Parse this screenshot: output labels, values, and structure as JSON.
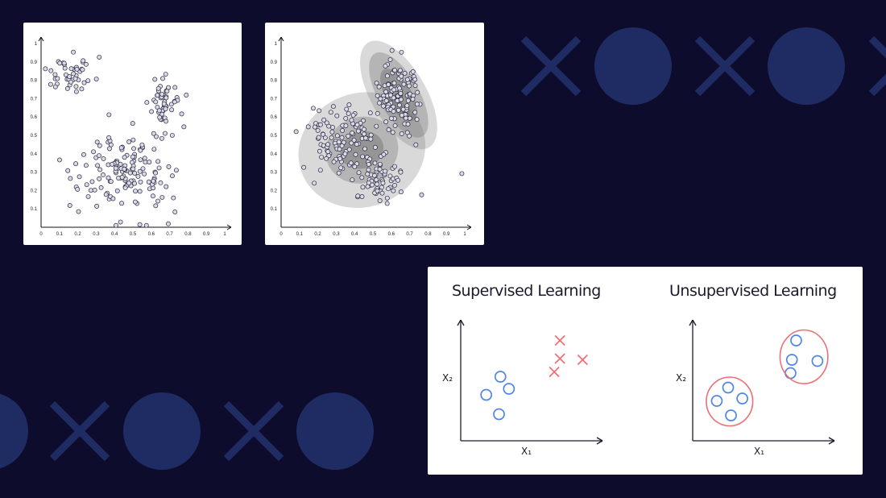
{
  "colors": {
    "background": "#0d0c2c",
    "decoration": "#1f2c63",
    "point_fill": "#d9d9ea",
    "point_stroke": "#2a2a3a",
    "class_a": "#4f86e6",
    "class_b": "#ec6f76"
  },
  "decorations": {
    "top_row": [
      "x-icon",
      "circle-icon",
      "x-icon",
      "circle-icon",
      "x-icon"
    ],
    "bottom_row": [
      "circle-icon",
      "x-icon",
      "circle-icon",
      "x-icon",
      "circle-icon"
    ]
  },
  "chart_data": [
    {
      "type": "scatter",
      "xlim": [
        0,
        1
      ],
      "ylim": [
        0,
        1
      ],
      "xticks": [
        "0",
        "0.1",
        "0.2",
        "0.3",
        "0.4",
        "0.5",
        "0.6",
        "0.7",
        "0.8",
        "0.9",
        "1"
      ],
      "yticks": [
        "0",
        "0.1",
        "0.2",
        "0.3",
        "0.4",
        "0.5",
        "0.6",
        "0.7",
        "0.8",
        "0.9",
        "1"
      ],
      "clusters": [
        {
          "center": [
            0.16,
            0.82
          ],
          "spread": [
            0.06,
            0.05
          ],
          "count": 45
        },
        {
          "center": [
            0.67,
            0.68
          ],
          "spread": [
            0.045,
            0.065
          ],
          "count": 55
        },
        {
          "center": [
            0.45,
            0.3
          ],
          "spread": [
            0.13,
            0.11
          ],
          "count": 150
        }
      ]
    },
    {
      "type": "scatter",
      "xlim": [
        0,
        1
      ],
      "ylim": [
        0,
        1
      ],
      "xticks": [
        "0",
        "0.1",
        "0.2",
        "0.3",
        "0.4",
        "0.5",
        "0.6",
        "0.7",
        "0.8",
        "0.9",
        "1"
      ],
      "yticks": [
        "0",
        "0.1",
        "0.2",
        "0.3",
        "0.4",
        "0.5",
        "0.6",
        "0.7",
        "0.8",
        "0.9",
        "1"
      ],
      "gaussians": [
        {
          "center": [
            0.44,
            0.42
          ],
          "radii": [
            [
              0.12,
              0.1
            ],
            [
              0.2,
              0.18
            ],
            [
              0.35,
              0.31
            ]
          ],
          "angle": -20
        },
        {
          "center": [
            0.64,
            0.72
          ],
          "radii": [
            [
              0.07,
              0.16
            ],
            [
              0.11,
              0.26
            ],
            [
              0.15,
              0.33
            ]
          ],
          "angle": -30
        }
      ],
      "clusters": [
        {
          "center": [
            0.27,
            0.47
          ],
          "spread": [
            0.06,
            0.09
          ],
          "count": 60
        },
        {
          "center": [
            0.39,
            0.5
          ],
          "spread": [
            0.05,
            0.07
          ],
          "count": 30
        },
        {
          "center": [
            0.64,
            0.71
          ],
          "spread": [
            0.06,
            0.1
          ],
          "count": 110
        },
        {
          "center": [
            0.52,
            0.26
          ],
          "spread": [
            0.07,
            0.06
          ],
          "count": 60
        },
        {
          "center": [
            0.45,
            0.4
          ],
          "spread": [
            0.18,
            0.18
          ],
          "count": 25
        }
      ]
    },
    {
      "type": "scatter",
      "title": "Supervised Learning",
      "xlabel": "X₁",
      "ylabel": "X₂",
      "series": [
        {
          "marker": "circle",
          "points": [
            [
              0.18,
              0.38
            ],
            [
              0.34,
              0.43
            ],
            [
              0.28,
              0.53
            ],
            [
              0.27,
              0.22
            ]
          ]
        },
        {
          "marker": "cross",
          "points": [
            [
              0.7,
              0.83
            ],
            [
              0.7,
              0.68
            ],
            [
              0.86,
              0.67
            ],
            [
              0.66,
              0.57
            ]
          ]
        }
      ]
    },
    {
      "type": "scatter",
      "title": "Unsupervised Learning",
      "xlabel": "X₁",
      "ylabel": "X₂",
      "series": [
        {
          "marker": "circle",
          "points": [
            [
              0.17,
              0.33
            ],
            [
              0.25,
              0.44
            ],
            [
              0.35,
              0.35
            ],
            [
              0.27,
              0.21
            ]
          ]
        },
        {
          "marker": "circle",
          "points": [
            [
              0.73,
              0.83
            ],
            [
              0.7,
              0.67
            ],
            [
              0.88,
              0.66
            ],
            [
              0.69,
              0.56
            ]
          ]
        }
      ]
    }
  ]
}
